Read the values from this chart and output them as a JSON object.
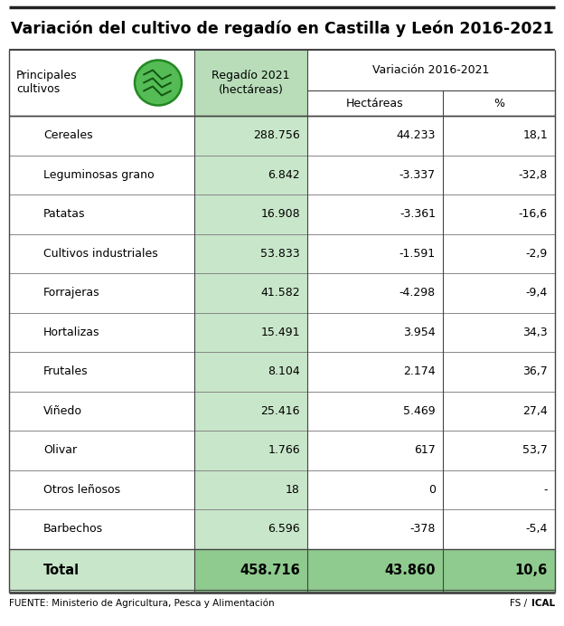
{
  "title": "Variación del cultivo de regadío en Castilla y León 2016-2021",
  "variacion_header": "Variación 2016-2021",
  "rows": [
    {
      "label": "Cereales",
      "ha2021": "288.756",
      "var_ha": "44.233",
      "var_pct": "18,1"
    },
    {
      "label": "Leguminosas grano",
      "ha2021": "6.842",
      "var_ha": "-3.337",
      "var_pct": "-32,8"
    },
    {
      "label": "Patatas",
      "ha2021": "16.908",
      "var_ha": "-3.361",
      "var_pct": "-16,6"
    },
    {
      "label": "Cultivos industriales",
      "ha2021": "53.833",
      "var_ha": "-1.591",
      "var_pct": "-2,9"
    },
    {
      "label": "Forrajeras",
      "ha2021": "41.582",
      "var_ha": "-4.298",
      "var_pct": "-9,4"
    },
    {
      "label": "Hortalizas",
      "ha2021": "15.491",
      "var_ha": "3.954",
      "var_pct": "34,3"
    },
    {
      "label": "Frutales",
      "ha2021": "8.104",
      "var_ha": "2.174",
      "var_pct": "36,7"
    },
    {
      "label": "Viñedo",
      "ha2021": "25.416",
      "var_ha": "5.469",
      "var_pct": "27,4"
    },
    {
      "label": "Olivar",
      "ha2021": "1.766",
      "var_ha": "617",
      "var_pct": "53,7"
    },
    {
      "label": "Otros leñosos",
      "ha2021": "18",
      "var_ha": "0",
      "var_pct": "-"
    },
    {
      "label": "Barbechos",
      "ha2021": "6.596",
      "var_ha": "-378",
      "var_pct": "-5,4"
    }
  ],
  "total_row": {
    "label": "Total",
    "ha2021": "458.716",
    "var_ha": "43.860",
    "var_pct": "10,6"
  },
  "footer_left": "FUENTE: Ministerio de Agricultura, Pesca y Alimentación",
  "footer_right_fs": "FS / ",
  "footer_right_ical": "ICAL",
  "bg_color": "#ffffff",
  "cell_green_bg": "#c8e6c9",
  "total_left_bg": "#c8e6c9",
  "total_right_bg": "#8fca8f",
  "header_green_bg": "#b8ddb8",
  "border_dark": "#444444",
  "border_light": "#888888",
  "title_fontsize": 12.5,
  "header_fontsize": 9,
  "row_fontsize": 9,
  "total_fontsize": 10.5,
  "footer_fontsize": 7.5
}
